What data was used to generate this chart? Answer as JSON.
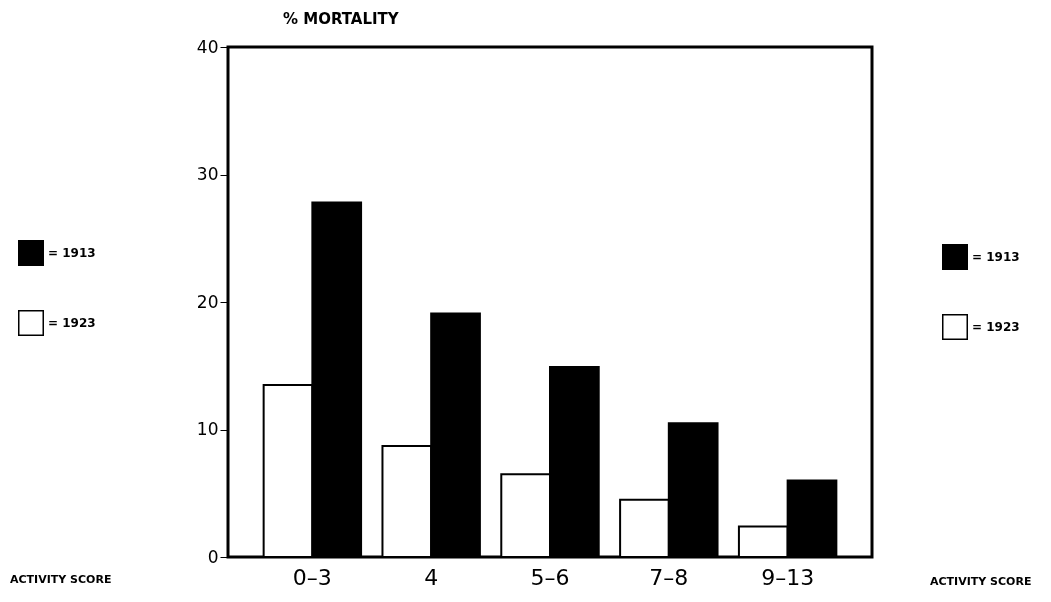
{
  "chart_data": {
    "type": "bar",
    "ylabel": "% MORTALITY",
    "annotations": [
      "ACTIVITY SCORE",
      "ACTIVITY SCORE"
    ],
    "categories": [
      "0–3",
      "4",
      "5–6",
      "7–8",
      "9–13"
    ],
    "series": [
      {
        "name": "= 1923",
        "color": "#ffffff",
        "values": [
          13.5,
          8.7,
          6.5,
          4.5,
          2.4
        ]
      },
      {
        "name": "= 1913",
        "color": "#000000",
        "values": [
          27.8,
          19.1,
          14.9,
          10.5,
          6.0
        ]
      }
    ],
    "ylim": [
      0,
      40
    ],
    "yticks": [
      0,
      10,
      20,
      30,
      40
    ],
    "grid": false,
    "legend": "left"
  }
}
